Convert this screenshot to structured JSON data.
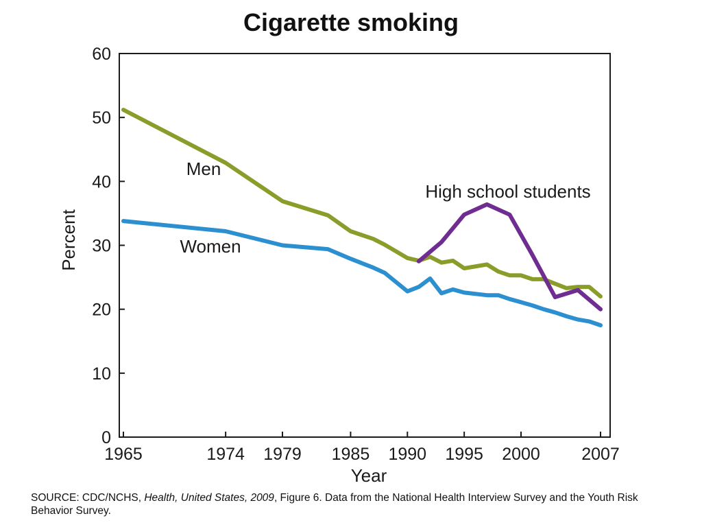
{
  "chart_data": {
    "type": "line",
    "title": "Cigarette smoking",
    "xlabel": "Year",
    "ylabel": "Percent",
    "xlim": [
      1965,
      2007
    ],
    "ylim": [
      0,
      60
    ],
    "x_ticks": [
      1965,
      1974,
      1979,
      1985,
      1990,
      1995,
      2000,
      2007
    ],
    "y_ticks": [
      0,
      10,
      20,
      30,
      40,
      50,
      60
    ],
    "grid": false,
    "legend": "none",
    "series": [
      {
        "name": "Men",
        "color": "#8a9d2a",
        "points": [
          [
            1965,
            51.2
          ],
          [
            1974,
            42.9
          ],
          [
            1979,
            36.9
          ],
          [
            1983,
            34.7
          ],
          [
            1985,
            32.2
          ],
          [
            1987,
            31.0
          ],
          [
            1988,
            30.1
          ],
          [
            1990,
            28.0
          ],
          [
            1991,
            27.6
          ],
          [
            1992,
            28.2
          ],
          [
            1993,
            27.3
          ],
          [
            1994,
            27.6
          ],
          [
            1995,
            26.4
          ],
          [
            1997,
            27.0
          ],
          [
            1998,
            25.9
          ],
          [
            1999,
            25.3
          ],
          [
            2000,
            25.3
          ],
          [
            2001,
            24.7
          ],
          [
            2002,
            24.7
          ],
          [
            2003,
            24.0
          ],
          [
            2004,
            23.3
          ],
          [
            2005,
            23.5
          ],
          [
            2006,
            23.5
          ],
          [
            2007,
            22.0
          ]
        ]
      },
      {
        "name": "Women",
        "color": "#2b8fd0",
        "points": [
          [
            1965,
            33.8
          ],
          [
            1974,
            32.2
          ],
          [
            1979,
            30.0
          ],
          [
            1983,
            29.4
          ],
          [
            1985,
            27.9
          ],
          [
            1987,
            26.5
          ],
          [
            1988,
            25.7
          ],
          [
            1990,
            22.8
          ],
          [
            1991,
            23.5
          ],
          [
            1992,
            24.8
          ],
          [
            1993,
            22.5
          ],
          [
            1994,
            23.1
          ],
          [
            1995,
            22.6
          ],
          [
            1997,
            22.2
          ],
          [
            1998,
            22.2
          ],
          [
            1999,
            21.6
          ],
          [
            2000,
            21.1
          ],
          [
            2001,
            20.6
          ],
          [
            2002,
            20.0
          ],
          [
            2003,
            19.5
          ],
          [
            2004,
            18.9
          ],
          [
            2005,
            18.4
          ],
          [
            2006,
            18.1
          ],
          [
            2007,
            17.5
          ]
        ]
      },
      {
        "name": "High school students",
        "color": "#6f2c91",
        "points": [
          [
            1991,
            27.5
          ],
          [
            1993,
            30.5
          ],
          [
            1995,
            34.8
          ],
          [
            1997,
            36.4
          ],
          [
            1999,
            34.8
          ],
          [
            2001,
            28.5
          ],
          [
            2003,
            21.9
          ],
          [
            2005,
            23.0
          ],
          [
            2007,
            20.0
          ]
        ]
      }
    ]
  },
  "source_note": {
    "prefix": "SOURCE: CDC/NCHS, ",
    "title": "Health, United States, 2009",
    "suffix": ", Figure 6. Data from the National Health Interview Survey and the Youth Risk Behavior Survey."
  }
}
